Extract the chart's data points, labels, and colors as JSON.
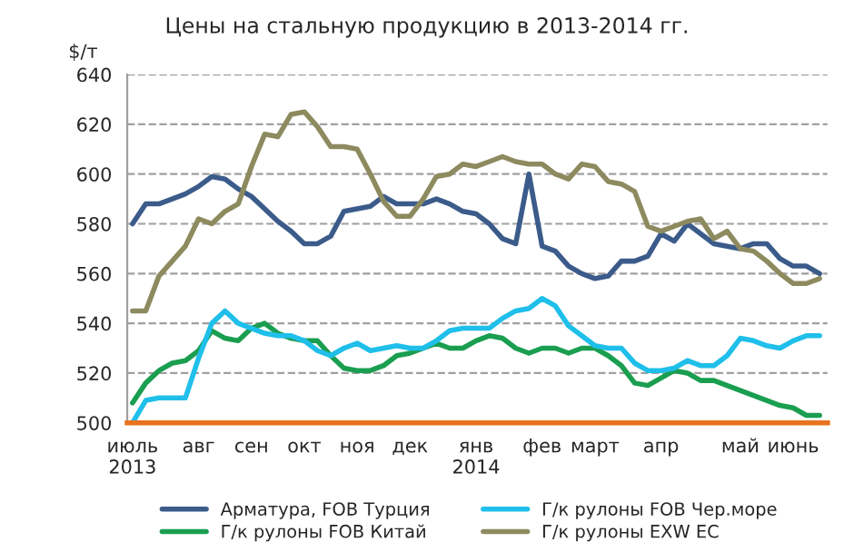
{
  "chart_data": {
    "type": "line",
    "title": "Цены на стальную продукцию в 2013-2014 гг.",
    "ylabel": "$/т",
    "ylim": [
      500,
      640
    ],
    "yticks": [
      500,
      520,
      540,
      560,
      580,
      600,
      620,
      640
    ],
    "categories": [
      "июль\n2013",
      null,
      null,
      null,
      null,
      "авг",
      null,
      null,
      null,
      "сен",
      null,
      null,
      null,
      "окт",
      null,
      null,
      null,
      "ноя",
      null,
      null,
      null,
      "дек",
      null,
      null,
      null,
      null,
      "янв\n2014",
      null,
      null,
      null,
      null,
      "фев",
      null,
      null,
      null,
      "март",
      null,
      null,
      null,
      null,
      "апр",
      null,
      null,
      null,
      null,
      null,
      "май",
      null,
      null,
      null,
      "июнь",
      null,
      null
    ],
    "grid": "y",
    "legend": "bottom",
    "marker": "none",
    "line_style": "solid",
    "series": [
      {
        "name": "Арматура, FOB Турция",
        "color": "#3b5b8a",
        "values": [
          580,
          588,
          588,
          590,
          592,
          595,
          599,
          598,
          594,
          591,
          586,
          581,
          577,
          572,
          572,
          575,
          585,
          586,
          587,
          591,
          588,
          588,
          588,
          590,
          588,
          585,
          584,
          580,
          574,
          572,
          600,
          571,
          569,
          563,
          560,
          558,
          559,
          565,
          565,
          567,
          576,
          573,
          580,
          576,
          572,
          571,
          570,
          572,
          572,
          566,
          563,
          563,
          560
        ]
      },
      {
        "name": "Г/к рулоны FOB Китай",
        "color": "#1a9e50",
        "values": [
          508,
          516,
          521,
          524,
          525,
          529,
          537,
          534,
          533,
          538,
          540,
          536,
          534,
          533,
          533,
          527,
          522,
          521,
          521,
          523,
          527,
          528,
          530,
          532,
          530,
          530,
          533,
          535,
          534,
          530,
          528,
          530,
          530,
          528,
          530,
          530,
          527,
          523,
          516,
          515,
          518,
          521,
          520,
          517,
          517,
          515,
          513,
          511,
          509,
          507,
          506,
          503,
          503
        ]
      },
      {
        "name": "Г/к рулоны FOB Чер.море",
        "color": "#1fbfea",
        "values": [
          500,
          509,
          510,
          510,
          510,
          526,
          540,
          545,
          540,
          538,
          536,
          535,
          535,
          533,
          529,
          527,
          530,
          532,
          529,
          530,
          531,
          530,
          530,
          533,
          537,
          538,
          538,
          538,
          542,
          545,
          546,
          550,
          547,
          539,
          535,
          531,
          530,
          530,
          524,
          521,
          521,
          522,
          525,
          523,
          523,
          527,
          534,
          533,
          531,
          530,
          533,
          535,
          535
        ]
      },
      {
        "name": "Г/к рулоны EXW ЕС",
        "color": "#8d8a5f",
        "values": [
          545,
          545,
          559,
          565,
          571,
          582,
          580,
          585,
          588,
          603,
          616,
          615,
          624,
          625,
          619,
          611,
          611,
          610,
          600,
          589,
          583,
          583,
          590,
          599,
          600,
          604,
          603,
          605,
          607,
          605,
          604,
          604,
          600,
          598,
          604,
          603,
          597,
          596,
          593,
          579,
          577,
          579,
          581,
          582,
          574,
          577,
          570,
          569,
          565,
          560,
          556,
          556,
          558
        ]
      }
    ]
  }
}
